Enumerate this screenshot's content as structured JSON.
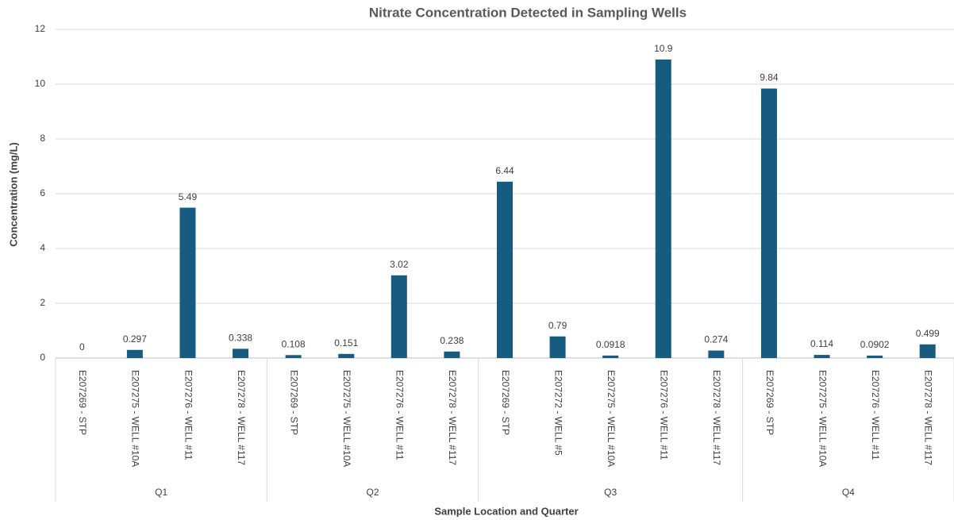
{
  "chart_data": {
    "type": "bar",
    "title": "Nitrate Concentration Detected in Sampling Wells",
    "x_label": "Sample Location and Quarter",
    "y_label": "Concentration (mg/L)",
    "color": "#175c80",
    "grid": true,
    "ylim": [
      0,
      12
    ],
    "yticks": [
      0,
      2,
      4,
      6,
      8,
      10,
      12
    ],
    "groups": [
      {
        "name": "Q1",
        "categories": [
          "E207269 - STP",
          "E207275 - WELL #10A",
          "E207276 - WELL #11",
          "E207278 - WELL #117"
        ],
        "values": [
          0,
          0.297,
          5.49,
          0.338
        ]
      },
      {
        "name": "Q2",
        "categories": [
          "E207269 - STP",
          "E207275 - WELL #10A",
          "E207276 - WELL #11",
          "E207278 - WELL #117"
        ],
        "values": [
          0.108,
          0.151,
          3.02,
          0.238
        ]
      },
      {
        "name": "Q3",
        "categories": [
          "E207269 - STP",
          "E207272 - WELL #5",
          "E207275 - WELL #10A",
          "E207276 - WELL #11",
          "E207278 - WELL #117"
        ],
        "values": [
          6.44,
          0.79,
          0.0918,
          10.9,
          0.274
        ]
      },
      {
        "name": "Q4",
        "categories": [
          "E207269 - STP",
          "E207275 - WELL #10A",
          "E207276 - WELL #11",
          "E207278 - WELL #117"
        ],
        "values": [
          9.84,
          0.114,
          0.0902,
          0.499
        ]
      }
    ]
  }
}
